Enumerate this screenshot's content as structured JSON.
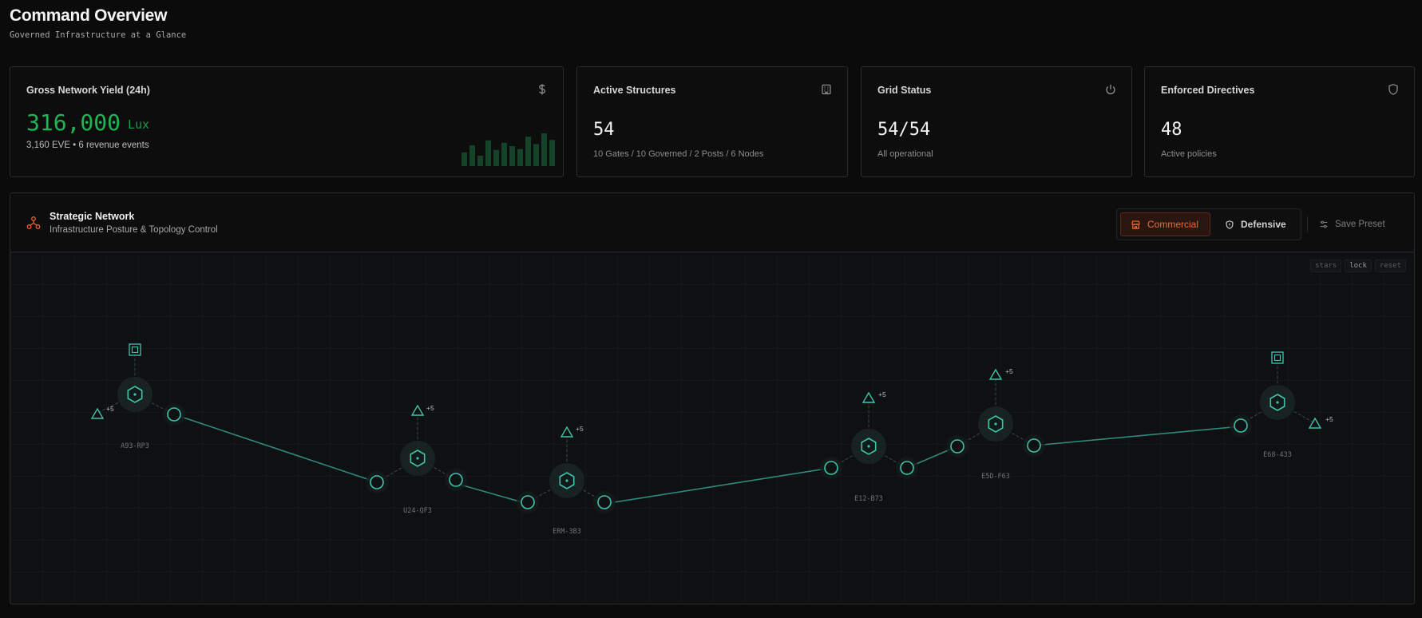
{
  "header": {
    "title": "Command Overview",
    "subtitle": "Governed Infrastructure at a Glance"
  },
  "cards": {
    "yield": {
      "title": "Gross Network Yield (24h)",
      "value": "316,000",
      "unit": "Lux",
      "sub": "3,160 EVE • 6 revenue events",
      "icon": "dollar-icon",
      "sparkline": [
        0.33,
        0.5,
        0.25,
        0.62,
        0.39,
        0.56,
        0.48,
        0.41,
        0.71,
        0.53,
        0.79,
        0.63
      ]
    },
    "structures": {
      "title": "Active Structures",
      "value": "54",
      "sub": "10 Gates / 10 Governed / 2 Posts / 6 Nodes",
      "icon": "building-icon"
    },
    "grid": {
      "title": "Grid Status",
      "value": "54/54",
      "sub": "All operational",
      "icon": "power-icon"
    },
    "directives": {
      "title": "Enforced Directives",
      "value": "48",
      "sub": "Active policies",
      "icon": "shield-icon"
    }
  },
  "network": {
    "title": "Strategic Network",
    "subtitle": "Infrastructure Posture & Topology Control",
    "modes": {
      "commercial": "Commercial",
      "defensive": "Defensive",
      "active": "commercial"
    },
    "save_preset": "Save Preset",
    "tools": {
      "stars": "stars",
      "lock": "lock",
      "reset": "reset"
    },
    "plus_badge": "+5",
    "systems": [
      "A93-RP3",
      "U24-QF3",
      "ERM-3B3",
      "E12-B73",
      "E5D-F63",
      "E68-433"
    ],
    "colors": {
      "teal": "#3fc3ad",
      "link": "#2f8a7c",
      "accent": "#ee6a2e",
      "green": "#1fb454"
    }
  }
}
